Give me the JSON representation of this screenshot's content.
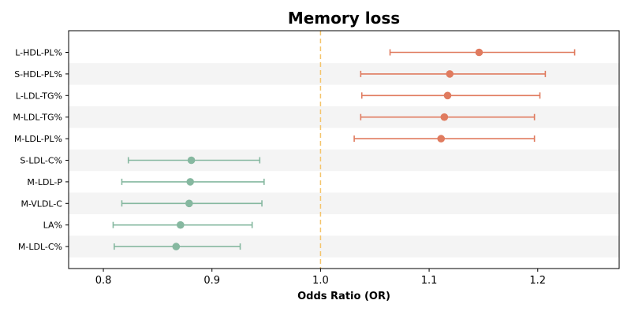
{
  "chart_data": {
    "type": "forest",
    "title": "Memory loss",
    "xlabel": "Odds Ratio (OR)",
    "ylabel": "",
    "xlim": [
      0.768,
      1.275
    ],
    "x_ticks": [
      0.8,
      0.9,
      1.0,
      1.1,
      1.2
    ],
    "x_tick_labels": [
      "0.8",
      "0.9",
      "1.0",
      "1.1",
      "1.2"
    ],
    "reference_line": 1.0,
    "reference_color": "#f4c46a",
    "colors": {
      "risk": "#e07b5f",
      "protective": "#86b8a0",
      "band": "#f4f4f4"
    },
    "rows": [
      {
        "label": "L-HDL-PL%",
        "or": 1.146,
        "lower": 1.064,
        "upper": 1.234
      },
      {
        "label": "S-HDL-PL%",
        "or": 1.119,
        "lower": 1.037,
        "upper": 1.207
      },
      {
        "label": "L-LDL-TG%",
        "or": 1.117,
        "lower": 1.038,
        "upper": 1.202
      },
      {
        "label": "M-LDL-TG%",
        "or": 1.114,
        "lower": 1.037,
        "upper": 1.197
      },
      {
        "label": "M-LDL-PL%",
        "or": 1.111,
        "lower": 1.031,
        "upper": 1.197
      },
      {
        "label": "S-LDL-C%",
        "or": 0.881,
        "lower": 0.823,
        "upper": 0.944
      },
      {
        "label": "M-LDL-P",
        "or": 0.88,
        "lower": 0.817,
        "upper": 0.948
      },
      {
        "label": "M-VLDL-C",
        "or": 0.879,
        "lower": 0.817,
        "upper": 0.946
      },
      {
        "label": "LA%",
        "or": 0.871,
        "lower": 0.809,
        "upper": 0.937
      },
      {
        "label": "M-LDL-C%",
        "or": 0.867,
        "lower": 0.81,
        "upper": 0.926
      }
    ]
  }
}
